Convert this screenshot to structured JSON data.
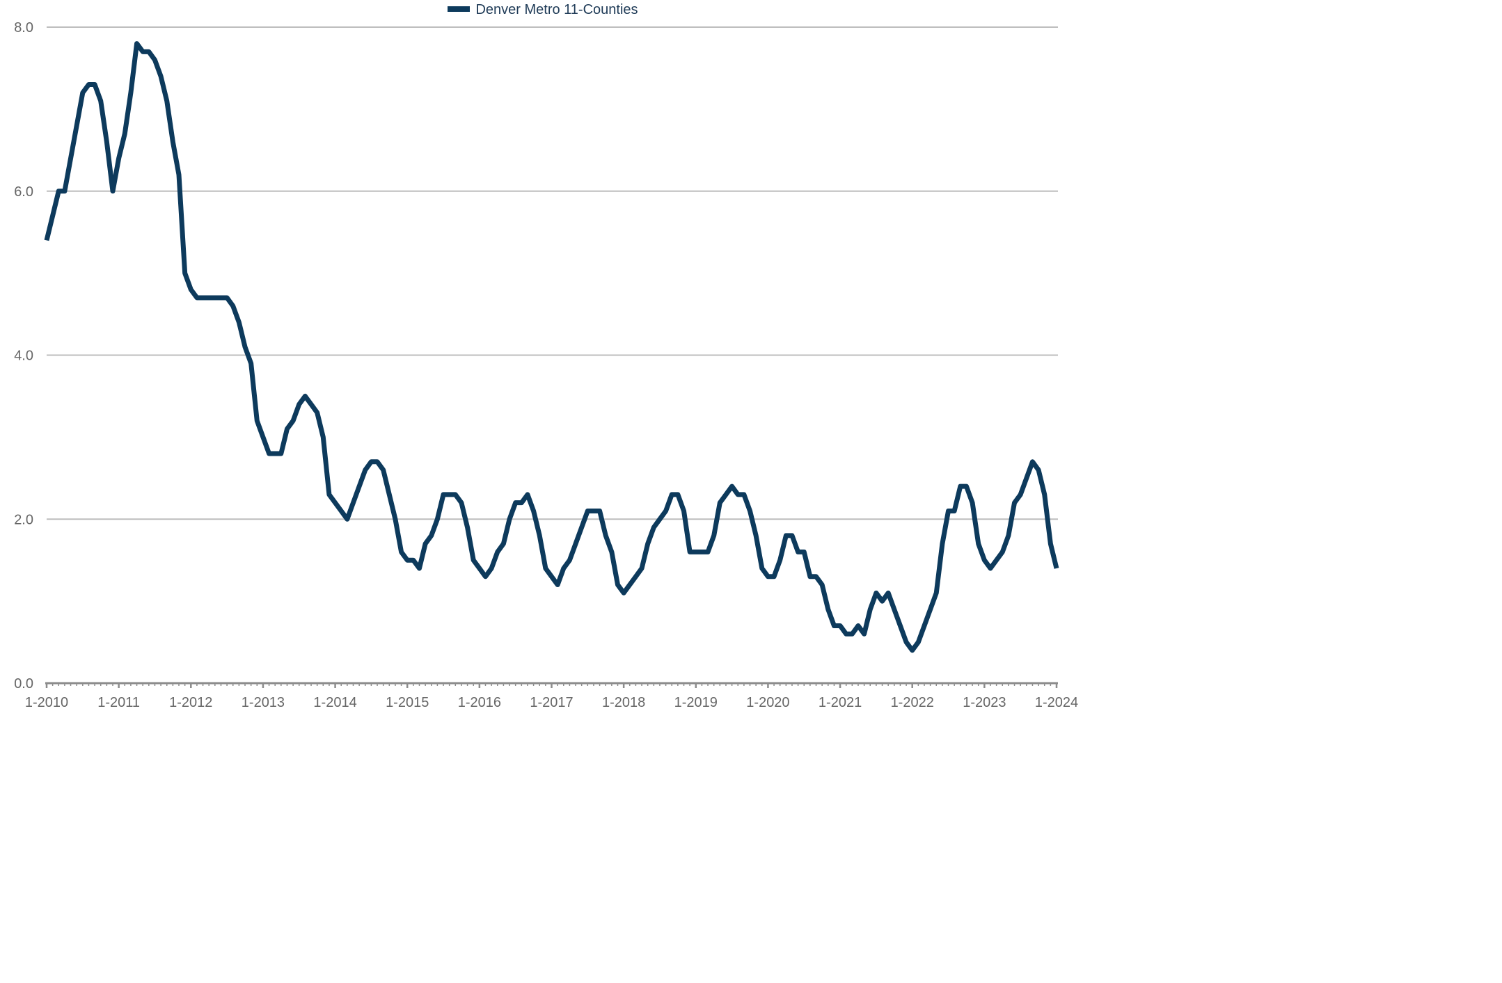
{
  "chart_data": {
    "type": "line",
    "title": "",
    "xlabel": "",
    "ylabel": "",
    "ylim": [
      0,
      8
    ],
    "grid": true,
    "legend_position": "top-center",
    "y_ticks": [
      "0.0",
      "2.0",
      "4.0",
      "6.0",
      "8.0"
    ],
    "x_ticks": [
      "1-2010",
      "1-2011",
      "1-2012",
      "1-2013",
      "1-2014",
      "1-2015",
      "1-2016",
      "1-2017",
      "1-2018",
      "1-2019",
      "1-2020",
      "1-2021",
      "1-2022",
      "1-2023",
      "1-2024"
    ],
    "x_start": "1-2010",
    "x_frequency": "monthly",
    "series": [
      {
        "name": "Denver Metro 11-Counties",
        "color": "#0d3a5c",
        "values": [
          5.4,
          5.7,
          6.0,
          6.0,
          6.4,
          6.8,
          7.2,
          7.3,
          7.3,
          7.1,
          6.6,
          6.0,
          6.4,
          6.7,
          7.2,
          7.8,
          7.7,
          7.7,
          7.6,
          7.4,
          7.1,
          6.6,
          6.2,
          5.0,
          4.8,
          4.7,
          4.7,
          4.7,
          4.7,
          4.7,
          4.7,
          4.6,
          4.4,
          4.1,
          3.9,
          3.2,
          3.0,
          2.8,
          2.8,
          2.8,
          3.1,
          3.2,
          3.4,
          3.5,
          3.4,
          3.3,
          3.0,
          2.3,
          2.2,
          2.1,
          2.0,
          2.2,
          2.4,
          2.6,
          2.7,
          2.7,
          2.6,
          2.3,
          2.0,
          1.6,
          1.5,
          1.5,
          1.4,
          1.7,
          1.8,
          2.0,
          2.3,
          2.3,
          2.3,
          2.2,
          1.9,
          1.5,
          1.4,
          1.3,
          1.4,
          1.6,
          1.7,
          2.0,
          2.2,
          2.2,
          2.3,
          2.1,
          1.8,
          1.4,
          1.3,
          1.2,
          1.4,
          1.5,
          1.7,
          1.9,
          2.1,
          2.1,
          2.1,
          1.8,
          1.6,
          1.2,
          1.1,
          1.2,
          1.3,
          1.4,
          1.7,
          1.9,
          2.0,
          2.1,
          2.3,
          2.3,
          2.1,
          1.6,
          1.6,
          1.6,
          1.6,
          1.8,
          2.2,
          2.3,
          2.4,
          2.3,
          2.3,
          2.1,
          1.8,
          1.4,
          1.3,
          1.3,
          1.5,
          1.8,
          1.8,
          1.6,
          1.6,
          1.3,
          1.3,
          1.2,
          0.9,
          0.7,
          0.7,
          0.6,
          0.6,
          0.7,
          0.6,
          0.9,
          1.1,
          1.0,
          1.1,
          0.9,
          0.7,
          0.5,
          0.4,
          0.5,
          0.7,
          0.9,
          1.1,
          1.7,
          2.1,
          2.1,
          2.4,
          2.4,
          2.2,
          1.7,
          1.5,
          1.4,
          1.5,
          1.6,
          1.8,
          2.2,
          2.3,
          2.5,
          2.7,
          2.6,
          2.3,
          1.7,
          1.4
        ]
      }
    ]
  }
}
